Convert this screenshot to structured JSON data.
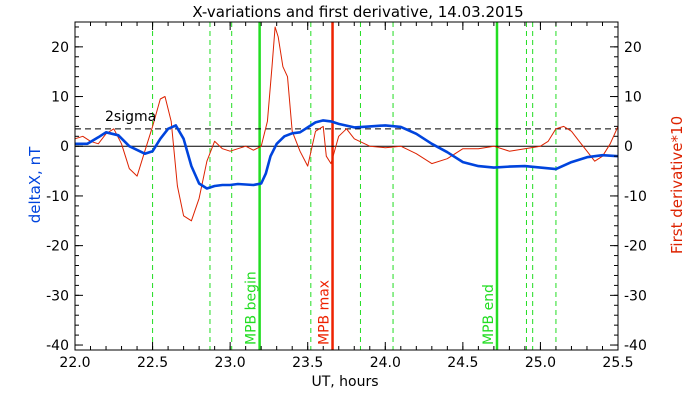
{
  "chart_data": {
    "type": "line",
    "title": "X-variations and first derivative, 14.03.2015",
    "xlabel": "UT, hours",
    "ylabel_left": "deltaX, nT",
    "ylabel_right": "First derivative*10",
    "xlim": [
      22.0,
      25.5
    ],
    "ylim": [
      -41,
      25
    ],
    "x_ticks": [
      "22.0",
      "22.5",
      "23.0",
      "23.5",
      "24.0",
      "24.5",
      "25.0",
      "25.5"
    ],
    "y_ticks": [
      "20",
      "10",
      "0",
      "-10",
      "-20",
      "-30",
      "-40"
    ],
    "zero_line": 0,
    "sigma_level": 3.5,
    "sigma_label": "2sigma",
    "colors": {
      "deltaX": "#0044dd",
      "derivative": "#dd2200",
      "green_marker": "#22dd22",
      "red_marker": "#ee2200",
      "left_label": "#0044dd",
      "right_label": "#dd2200"
    },
    "series": [
      {
        "name": "deltaX",
        "x": [
          22.0,
          22.08,
          22.15,
          22.2,
          22.28,
          22.35,
          22.45,
          22.5,
          22.55,
          22.6,
          22.65,
          22.7,
          22.75,
          22.8,
          22.85,
          22.9,
          22.95,
          23.0,
          23.05,
          23.1,
          23.15,
          23.2,
          23.23,
          23.26,
          23.3,
          23.35,
          23.4,
          23.45,
          23.5,
          23.55,
          23.6,
          23.65,
          23.7,
          23.8,
          23.9,
          24.0,
          24.1,
          24.2,
          24.3,
          24.4,
          24.5,
          24.6,
          24.7,
          24.8,
          24.9,
          25.0,
          25.1,
          25.2,
          25.3,
          25.4,
          25.5
        ],
        "values": [
          0.5,
          0.5,
          1.8,
          2.8,
          2.2,
          0.0,
          -1.5,
          -1.0,
          1.5,
          3.5,
          4.2,
          1.5,
          -4.0,
          -7.5,
          -8.5,
          -8.0,
          -7.8,
          -7.8,
          -7.6,
          -7.7,
          -7.8,
          -7.5,
          -5.5,
          -2.0,
          0.5,
          2.0,
          2.6,
          2.8,
          3.8,
          4.8,
          5.2,
          5.0,
          4.5,
          3.8,
          4.0,
          4.2,
          3.9,
          2.5,
          0.5,
          -1.2,
          -3.2,
          -4.0,
          -4.3,
          -4.1,
          -4.0,
          -4.3,
          -4.6,
          -3.2,
          -2.2,
          -1.8,
          -2.0
        ]
      },
      {
        "name": "derivative",
        "x": [
          22.0,
          22.05,
          22.1,
          22.15,
          22.2,
          22.25,
          22.3,
          22.35,
          22.4,
          22.45,
          22.5,
          22.55,
          22.58,
          22.62,
          22.66,
          22.7,
          22.75,
          22.8,
          22.85,
          22.9,
          22.95,
          23.0,
          23.05,
          23.1,
          23.15,
          23.2,
          23.24,
          23.27,
          23.29,
          23.31,
          23.34,
          23.37,
          23.4,
          23.45,
          23.5,
          23.55,
          23.6,
          23.62,
          23.65,
          23.7,
          23.75,
          23.8,
          23.9,
          24.0,
          24.1,
          24.2,
          24.3,
          24.4,
          24.5,
          24.6,
          24.7,
          24.8,
          24.9,
          25.0,
          25.05,
          25.1,
          25.15,
          25.2,
          25.25,
          25.3,
          25.35,
          25.4,
          25.45,
          25.5
        ],
        "values": [
          1.5,
          2.0,
          1.0,
          0.5,
          2.5,
          3.5,
          0.5,
          -4.5,
          -6.0,
          -1.0,
          4.0,
          9.5,
          10.0,
          5.0,
          -8.0,
          -14.0,
          -15.0,
          -10.5,
          -3.0,
          1.0,
          -0.5,
          -1.0,
          -0.5,
          0.0,
          -0.8,
          0.0,
          5.0,
          16.0,
          24.0,
          22.0,
          16.0,
          14.0,
          3.0,
          -1.0,
          -4.0,
          3.0,
          4.0,
          -2.0,
          -3.5,
          2.0,
          3.5,
          1.5,
          0.0,
          -0.3,
          0.0,
          -1.5,
          -3.5,
          -2.5,
          -0.5,
          -0.5,
          0.0,
          -1.0,
          -0.5,
          0.0,
          1.0,
          3.5,
          4.0,
          3.0,
          1.0,
          -1.0,
          -3.0,
          -2.0,
          0.5,
          4.0
        ]
      }
    ],
    "vertical_lines": [
      {
        "x": 22.5,
        "color": "green",
        "style": "dashed"
      },
      {
        "x": 22.87,
        "color": "green",
        "style": "dashed"
      },
      {
        "x": 23.01,
        "color": "green",
        "style": "dashed"
      },
      {
        "x": 23.19,
        "color": "green",
        "style": "solid",
        "label": "MPB begin"
      },
      {
        "x": 23.52,
        "color": "green",
        "style": "dashed"
      },
      {
        "x": 23.66,
        "color": "red",
        "style": "solid",
        "label": "MPB max"
      },
      {
        "x": 23.84,
        "color": "green",
        "style": "dashed"
      },
      {
        "x": 24.05,
        "color": "green",
        "style": "dashed"
      },
      {
        "x": 24.72,
        "color": "green",
        "style": "solid",
        "label": "MPB end"
      },
      {
        "x": 24.91,
        "color": "green",
        "style": "dashed"
      },
      {
        "x": 24.95,
        "color": "green",
        "style": "dashed"
      },
      {
        "x": 25.1,
        "color": "green",
        "style": "dashed"
      }
    ]
  }
}
